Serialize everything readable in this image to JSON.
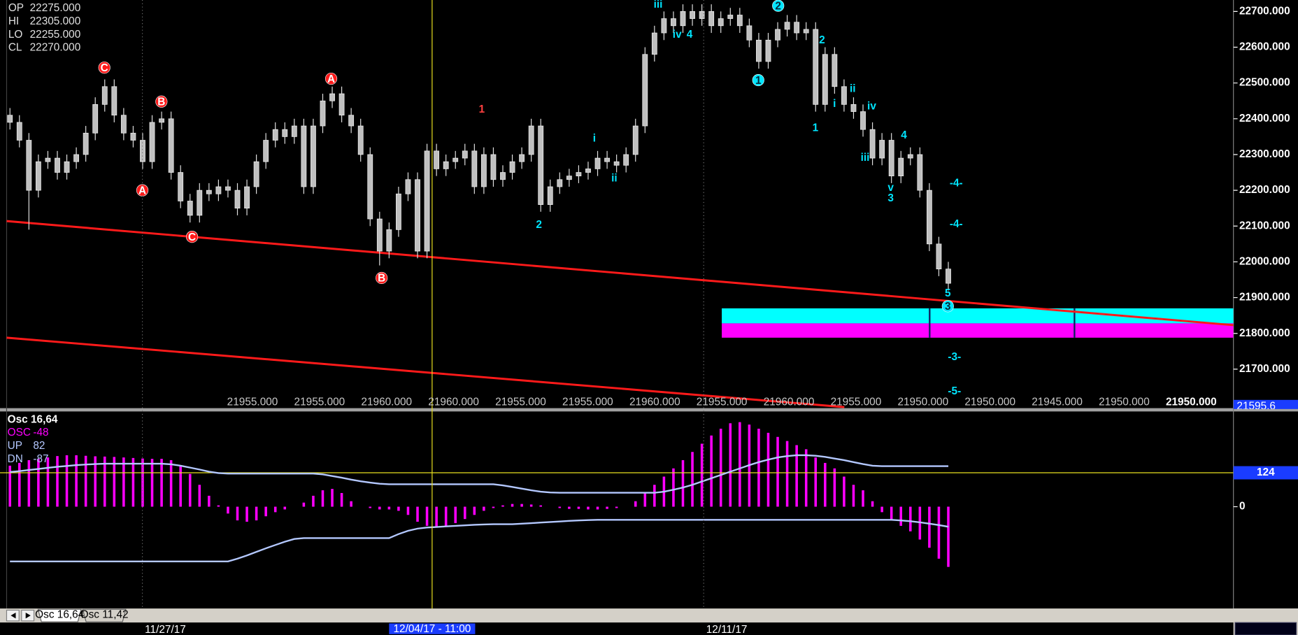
{
  "chart_data": {
    "type": "candlestick",
    "info": [
      {
        "label": "OP",
        "value": "22275.000"
      },
      {
        "label": "HI",
        "value": "22305.000"
      },
      {
        "label": "LO",
        "value": "22255.000"
      },
      {
        "label": "CL",
        "value": "22270.000"
      }
    ],
    "color": "#c0c0c0",
    "xlim": [
      -1.05,
      129.08
    ],
    "ylim": [
      21591,
      22732
    ],
    "yticks": [
      {
        "value": 22700,
        "label": "22700.000"
      },
      {
        "value": 22600,
        "label": "22600.000"
      },
      {
        "value": 22500,
        "label": "22500.000"
      },
      {
        "value": 22400,
        "label": "22400.000"
      },
      {
        "value": 22300,
        "label": "22300.000"
      },
      {
        "value": 22200,
        "label": "22200.000"
      },
      {
        "value": 22100,
        "label": "22100.000"
      },
      {
        "value": 22000,
        "label": "22000.000"
      },
      {
        "value": 21900,
        "label": "21900.000"
      },
      {
        "value": 21800,
        "label": "21800.000"
      },
      {
        "value": 21700,
        "label": "21700.000"
      }
    ],
    "y_marker": {
      "value": 21595.6,
      "label": "21595.6",
      "color": "#1a3cff"
    },
    "x_axis_labels": [
      "21955.000",
      "21955.000",
      "21960.000",
      "21960.000",
      "21955.000",
      "21955.000",
      "21960.000",
      "21955.000",
      "21960.000",
      "21955.000",
      "21950.000",
      "21950.000",
      "21945.000",
      "21950.000",
      "21950.000"
    ],
    "open": [
      22410,
      22390,
      22340,
      22200,
      22280,
      22290,
      22250,
      22280,
      22300,
      22360,
      22440,
      22490,
      22410,
      22360,
      22340,
      22280,
      22390,
      22400,
      22250,
      22170,
      22130,
      22200,
      22190,
      22210,
      22200,
      22150,
      22210,
      22280,
      22340,
      22370,
      22350,
      22380,
      22210,
      22380,
      22450,
      22470,
      22410,
      22380,
      22300,
      22120,
      22030,
      22090,
      22190,
      22230,
      22030,
      22310,
      22260,
      22280,
      22290,
      22310,
      22210,
      22300,
      22230,
      22250,
      22280,
      22300,
      22380,
      22160,
      22210,
      22230,
      22240,
      22250,
      22260,
      22290,
      22280,
      22270,
      22300,
      22380,
      22580,
      22640,
      22680,
      22660,
      22700,
      22680,
      22700,
      22660,
      22680,
      22690,
      22660,
      22620,
      22560,
      22620,
      22650,
      22670,
      22640,
      22650,
      22440,
      22580,
      22490,
      22440,
      22420,
      22370,
      22290,
      22340,
      22240,
      22290,
      22300,
      22200,
      22050,
      21980
    ],
    "high": [
      22430,
      22410,
      22360,
      22300,
      22310,
      22310,
      22300,
      22320,
      22380,
      22460,
      22510,
      22510,
      22430,
      22380,
      22360,
      22410,
      22420,
      22420,
      22270,
      22190,
      22220,
      22220,
      22230,
      22230,
      22220,
      22230,
      22300,
      22360,
      22390,
      22390,
      22400,
      22400,
      22400,
      22470,
      22490,
      22490,
      22430,
      22400,
      22320,
      22140,
      22110,
      22210,
      22250,
      22250,
      22330,
      22330,
      22300,
      22310,
      22330,
      22330,
      22320,
      22320,
      22270,
      22300,
      22320,
      22400,
      22400,
      22230,
      22250,
      22260,
      22270,
      22280,
      22310,
      22310,
      22300,
      22320,
      22400,
      22600,
      22660,
      22700,
      22700,
      22720,
      22720,
      22720,
      22720,
      22700,
      22710,
      22710,
      22680,
      22640,
      22640,
      22670,
      22690,
      22690,
      22670,
      22670,
      22600,
      22600,
      22510,
      22460,
      22440,
      22390,
      22360,
      22360,
      22310,
      22320,
      22320,
      22220,
      22070,
      22000
    ],
    "low": [
      22370,
      22320,
      22090,
      22180,
      22260,
      22230,
      22230,
      22260,
      22280,
      22340,
      22420,
      22390,
      22340,
      22320,
      22260,
      22260,
      22370,
      22230,
      22150,
      22110,
      22110,
      22170,
      22170,
      22180,
      22130,
      22130,
      22190,
      22260,
      22320,
      22330,
      22330,
      22190,
      22190,
      22360,
      22430,
      22390,
      22360,
      22280,
      22100,
      21990,
      22010,
      22070,
      22170,
      22010,
      22010,
      22240,
      22240,
      22260,
      22270,
      22190,
      22190,
      22210,
      22210,
      22230,
      22260,
      22280,
      22140,
      22140,
      22190,
      22210,
      22220,
      22230,
      22240,
      22260,
      22250,
      22250,
      22280,
      22360,
      22560,
      22620,
      22640,
      22640,
      22660,
      22660,
      22640,
      22640,
      22660,
      22640,
      22600,
      22540,
      22540,
      22600,
      22630,
      22620,
      22620,
      22420,
      22420,
      22470,
      22420,
      22400,
      22350,
      22270,
      22270,
      22220,
      22220,
      22270,
      22180,
      22030,
      21960,
      21920
    ],
    "close": [
      22390,
      22340,
      22200,
      22280,
      22290,
      22250,
      22280,
      22300,
      22360,
      22440,
      22490,
      22410,
      22360,
      22340,
      22280,
      22390,
      22400,
      22250,
      22170,
      22130,
      22200,
      22190,
      22210,
      22200,
      22150,
      22210,
      22280,
      22340,
      22370,
      22350,
      22380,
      22210,
      22380,
      22450,
      22470,
      22410,
      22380,
      22300,
      22120,
      22030,
      22090,
      22190,
      22230,
      22030,
      22310,
      22260,
      22280,
      22290,
      22310,
      22210,
      22300,
      22230,
      22250,
      22280,
      22300,
      22380,
      22160,
      22210,
      22230,
      22240,
      22250,
      22260,
      22290,
      22280,
      22270,
      22300,
      22380,
      22580,
      22640,
      22680,
      22660,
      22700,
      22680,
      22700,
      22660,
      22680,
      22690,
      22660,
      22620,
      22560,
      22620,
      22650,
      22670,
      22640,
      22650,
      22440,
      22580,
      22490,
      22440,
      22420,
      22370,
      22290,
      22340,
      22240,
      22290,
      22300,
      22200,
      22050,
      21980,
      21940
    ],
    "trendlines": [
      {
        "x": [
          -0.35,
          129.08
        ],
        "y": [
          22114,
          21823
        ],
        "color": "#ff1a1a"
      },
      {
        "x": [
          -0.35,
          88.03
        ],
        "y": [
          21788,
          21594
        ],
        "color": "#ff1a1a"
      }
    ],
    "zones": [
      {
        "x": [
          75.1,
          129.08
        ],
        "y": [
          21828,
          21870
        ],
        "color": "#00ffff"
      },
      {
        "x": [
          75.1,
          129.08
        ],
        "y": [
          21788,
          21828
        ],
        "color": "#ff00ff"
      }
    ],
    "zone_dividers": [
      97.03,
      112.31
    ],
    "annotations": [
      {
        "text": "C",
        "x": 9.96,
        "y": 22543,
        "color": "#ff1a1a",
        "circle": true
      },
      {
        "text": "B",
        "x": 15.98,
        "y": 22448,
        "color": "#ff1a1a",
        "circle": true
      },
      {
        "text": "A",
        "x": 13.97,
        "y": 22200,
        "color": "#ff1a1a",
        "circle": true
      },
      {
        "text": "C",
        "x": 19.21,
        "y": 22070,
        "color": "#ff1a1a",
        "circle": true
      },
      {
        "text": "A",
        "x": 33.89,
        "y": 22512,
        "color": "#ff1a1a",
        "circle": true
      },
      {
        "text": "B",
        "x": 39.21,
        "y": 21955,
        "color": "#ff1a1a",
        "circle": true
      },
      {
        "text": "1",
        "x": 49.78,
        "y": 22427,
        "color": "#ff4040",
        "circle": false
      },
      {
        "text": "2",
        "x": 55.81,
        "y": 22105,
        "color": "#00e5ff",
        "circle": false
      },
      {
        "text": "i",
        "x": 61.66,
        "y": 22346,
        "color": "#00e5ff",
        "circle": false
      },
      {
        "text": "ii",
        "x": 63.76,
        "y": 22235,
        "color": "#00e5ff",
        "circle": false
      },
      {
        "text": "iii",
        "x": 68.38,
        "y": 22721,
        "color": "#00e5ff",
        "circle": false
      },
      {
        "text": "iv",
        "x": 70.39,
        "y": 22637,
        "color": "#00e5ff",
        "circle": false
      },
      {
        "text": "4",
        "x": 71.7,
        "y": 22637,
        "color": "#00e5ff",
        "circle": false
      },
      {
        "text": "2",
        "x": 81.05,
        "y": 22716,
        "color": "#00e5ff",
        "circle": true
      },
      {
        "text": "1",
        "x": 78.95,
        "y": 22508,
        "color": "#00e5ff",
        "circle": true
      },
      {
        "text": "2",
        "x": 85.68,
        "y": 22621,
        "color": "#00e5ff",
        "circle": false
      },
      {
        "text": "1",
        "x": 84.98,
        "y": 22376,
        "color": "#00e5ff",
        "circle": false
      },
      {
        "text": "i",
        "x": 86.99,
        "y": 22443,
        "color": "#00e5ff",
        "circle": false
      },
      {
        "text": "ii",
        "x": 88.91,
        "y": 22485,
        "color": "#00e5ff",
        "circle": false
      },
      {
        "text": "iv",
        "x": 90.92,
        "y": 22436,
        "color": "#00e5ff",
        "circle": false
      },
      {
        "text": "iii",
        "x": 90.22,
        "y": 22293,
        "color": "#00e5ff",
        "circle": false
      },
      {
        "text": "4",
        "x": 94.32,
        "y": 22355,
        "color": "#00e5ff",
        "circle": false
      },
      {
        "text": "v",
        "x": 92.93,
        "y": 22209,
        "color": "#00e5ff",
        "circle": false
      },
      {
        "text": "3",
        "x": 92.93,
        "y": 22179,
        "color": "#00e5ff",
        "circle": false
      },
      {
        "text": "5",
        "x": 98.95,
        "y": 21913,
        "color": "#00e5ff",
        "circle": false
      },
      {
        "text": "3",
        "x": 98.95,
        "y": 21876,
        "color": "#00e5ff",
        "circle": true
      },
      {
        "text": "-4-",
        "x": 99.83,
        "y": 22221,
        "color": "#00e5ff",
        "circle": false
      },
      {
        "text": "-4-",
        "x": 99.83,
        "y": 22107,
        "color": "#00e5ff",
        "circle": false
      },
      {
        "text": "-3-",
        "x": 99.65,
        "y": 21735,
        "color": "#00e5ff",
        "circle": false
      },
      {
        "text": "-5-",
        "x": 99.65,
        "y": 21640,
        "color": "#00e5ff",
        "circle": false
      }
    ],
    "crosshair": {
      "x": 44.54,
      "label": "12/04/17 - 11:00",
      "color": "#e8e020"
    },
    "day_separators": [
      {
        "x": 13.97,
        "label": "11/27/17"
      },
      {
        "x": 73.19,
        "label": "12/11/17"
      }
    ],
    "oscillator": {
      "type": "bar",
      "title": "Osc 16,64",
      "name": "OSC",
      "reading": -48,
      "color": "#ff00ff",
      "ylim": [
        -372,
        348
      ],
      "yticks": [
        0
      ],
      "ref_line": 124,
      "values": [
        150,
        160,
        170,
        175,
        180,
        185,
        188,
        188,
        186,
        184,
        183,
        182,
        180,
        178,
        176,
        175,
        175,
        170,
        150,
        120,
        80,
        40,
        5,
        -25,
        -50,
        -55,
        -50,
        -35,
        -20,
        -10,
        0,
        15,
        40,
        60,
        65,
        50,
        20,
        0,
        -5,
        -10,
        -10,
        -15,
        -30,
        -55,
        -70,
        -72,
        -70,
        -60,
        -45,
        -30,
        -15,
        -5,
        5,
        10,
        10,
        8,
        5,
        0,
        -5,
        -8,
        -8,
        -10,
        -10,
        -8,
        -5,
        0,
        20,
        50,
        80,
        110,
        140,
        170,
        200,
        230,
        260,
        285,
        305,
        309,
        300,
        285,
        270,
        255,
        240,
        225,
        210,
        180,
        160,
        140,
        110,
        80,
        60,
        20,
        -20,
        -50,
        -70,
        -90,
        -120,
        -150,
        -190,
        -220
      ],
      "series": [
        {
          "name": "UP",
          "reading": 82,
          "color": "#b4c8ff",
          "values": [
            127,
            130,
            134,
            138,
            142,
            146,
            149,
            152,
            154,
            156,
            157,
            157,
            157,
            157,
            157,
            157,
            157,
            155,
            150,
            143,
            136,
            128,
            123,
            121,
            121,
            121,
            121,
            121,
            121,
            121,
            121,
            121,
            121,
            118,
            112,
            106,
            99,
            93,
            88,
            84,
            82,
            82,
            82,
            82,
            82,
            82,
            82,
            82,
            82,
            82,
            82,
            82,
            78,
            72,
            66,
            60,
            55,
            52,
            51,
            51,
            51,
            51,
            51,
            51,
            51,
            51,
            51,
            51,
            51,
            55,
            62,
            70,
            80,
            92,
            104,
            116,
            128,
            140,
            152,
            163,
            172,
            180,
            185,
            188,
            188,
            186,
            182,
            176,
            170,
            163,
            156,
            150,
            148,
            148,
            148,
            148,
            148,
            148,
            148,
            148
          ]
        },
        {
          "name": "DN",
          "reading": -87,
          "color": "#b4c8ff",
          "values": [
            -200,
            -200,
            -200,
            -200,
            -200,
            -200,
            -200,
            -200,
            -200,
            -200,
            -200,
            -200,
            -200,
            -200,
            -200,
            -200,
            -200,
            -200,
            -200,
            -200,
            -200,
            -200,
            -200,
            -200,
            -190,
            -178,
            -165,
            -152,
            -140,
            -128,
            -118,
            -115,
            -115,
            -115,
            -115,
            -115,
            -115,
            -115,
            -115,
            -115,
            -115,
            -100,
            -88,
            -80,
            -76,
            -74,
            -72,
            -70,
            -68,
            -66,
            -65,
            -64,
            -64,
            -64,
            -62,
            -60,
            -58,
            -56,
            -54,
            -52,
            -50,
            -49,
            -48,
            -48,
            -48,
            -48,
            -48,
            -48,
            -48,
            -48,
            -48,
            -48,
            -48,
            -48,
            -48,
            -48,
            -48,
            -48,
            -48,
            -48,
            -48,
            -48,
            -48,
            -48,
            -48,
            -48,
            -48,
            -48,
            -48,
            -48,
            -48,
            -48,
            -48,
            -48,
            -50,
            -53,
            -57,
            -62,
            -67,
            -73
          ]
        }
      ]
    }
  },
  "ui": {
    "tabs": [
      "Osc 16,64",
      "Osc 11,42"
    ]
  }
}
